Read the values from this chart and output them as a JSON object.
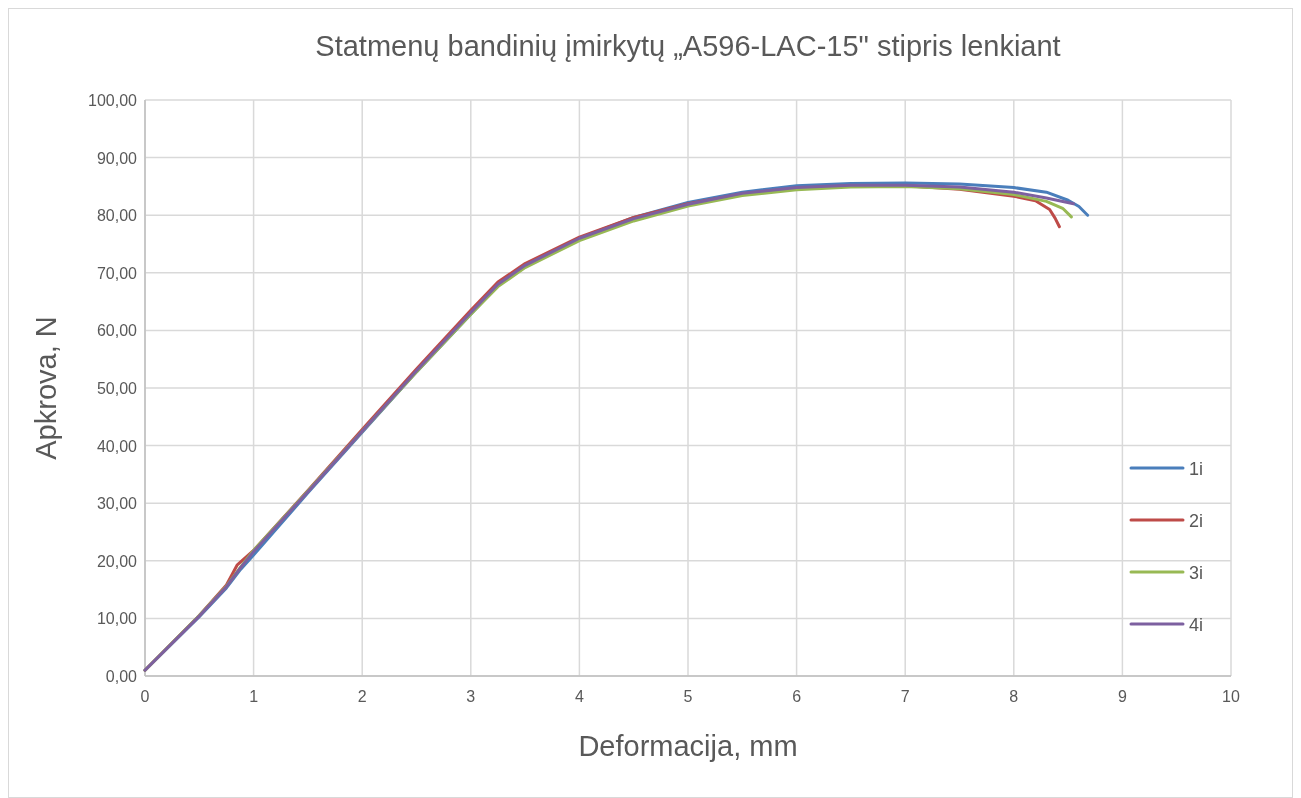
{
  "chart_data": {
    "type": "line",
    "title": "Statmenų bandinių įmirkytų „A596-LAC-15\" stipris lenkiant",
    "xlabel": "Deformacija, mm",
    "ylabel": "Apkrova, N",
    "xlim": [
      0,
      10
    ],
    "xticks": [
      0,
      1,
      2,
      3,
      4,
      5,
      6,
      7,
      8,
      9,
      10
    ],
    "ylim": [
      0,
      100
    ],
    "yticks": [
      {
        "value": 0,
        "label": "0,00"
      },
      {
        "value": 10,
        "label": "10,00"
      },
      {
        "value": 20,
        "label": "20,00"
      },
      {
        "value": 30,
        "label": "30,00"
      },
      {
        "value": 40,
        "label": "40,00"
      },
      {
        "value": 50,
        "label": "50,00"
      },
      {
        "value": 60,
        "label": "60,00"
      },
      {
        "value": 70,
        "label": "70,00"
      },
      {
        "value": 80,
        "label": "80,00"
      },
      {
        "value": 90,
        "label": "90,00"
      },
      {
        "value": 100,
        "label": "100,00"
      }
    ],
    "grid": true,
    "legend": "right",
    "marker": "none",
    "line_style": "solid",
    "series": [
      {
        "name": "1i",
        "color": "#4a7ebb",
        "x": [
          0,
          0.5,
          0.75,
          0.88,
          1,
          1.5,
          2,
          2.5,
          3,
          3.25,
          3.5,
          4,
          4.5,
          5,
          5.5,
          6,
          6.5,
          7,
          7.5,
          8,
          8.3,
          8.5,
          8.6,
          8.68
        ],
        "values": [
          1,
          10.3,
          15.3,
          18.5,
          21,
          31.8,
          42.3,
          52.8,
          62.8,
          67.8,
          71.2,
          76,
          79.6,
          82.2,
          84,
          85.1,
          85.5,
          85.6,
          85.4,
          84.8,
          84,
          82.6,
          81.5,
          80
        ]
      },
      {
        "name": "2i",
        "color": "#be4b48",
        "x": [
          0,
          0.5,
          0.75,
          0.85,
          1,
          1.5,
          2,
          2.5,
          3,
          3.25,
          3.5,
          4,
          4.5,
          5,
          5.5,
          6,
          6.5,
          7,
          7.5,
          8,
          8.2,
          8.33,
          8.38,
          8.42
        ],
        "values": [
          1,
          10.5,
          15.8,
          19.3,
          21.8,
          32.2,
          42.8,
          53.3,
          63.5,
          68.4,
          71.6,
          76.2,
          79.6,
          82,
          83.7,
          84.7,
          85.1,
          85.1,
          84.5,
          83.3,
          82.5,
          81,
          79.5,
          78
        ]
      },
      {
        "name": "3i",
        "color": "#98b954",
        "x": [
          0,
          0.5,
          0.75,
          0.88,
          1,
          1.5,
          2,
          2.5,
          3,
          3.25,
          3.5,
          4,
          4.5,
          5,
          5.5,
          6,
          6.5,
          7,
          7.5,
          8,
          8.3,
          8.45,
          8.53
        ],
        "values": [
          1,
          10.5,
          15.6,
          18.9,
          21.8,
          32.1,
          42.5,
          52.8,
          62.8,
          67.6,
          70.9,
          75.6,
          79,
          81.6,
          83.4,
          84.4,
          84.9,
          85,
          84.6,
          83.6,
          82.4,
          81.2,
          79.7
        ]
      },
      {
        "name": "4i",
        "color": "#7d60a0",
        "x": [
          0,
          0.5,
          0.75,
          0.88,
          1,
          1.5,
          2,
          2.5,
          3,
          3.25,
          3.5,
          4,
          4.5,
          5,
          5.5,
          6,
          6.5,
          7,
          7.5,
          8,
          8.3,
          8.55
        ],
        "values": [
          1,
          10.4,
          15.5,
          18.8,
          21.6,
          32,
          42.5,
          53,
          63.1,
          68,
          71.3,
          76,
          79.4,
          81.9,
          83.8,
          84.8,
          85.2,
          85.2,
          84.9,
          84,
          83,
          82
        ]
      }
    ]
  }
}
